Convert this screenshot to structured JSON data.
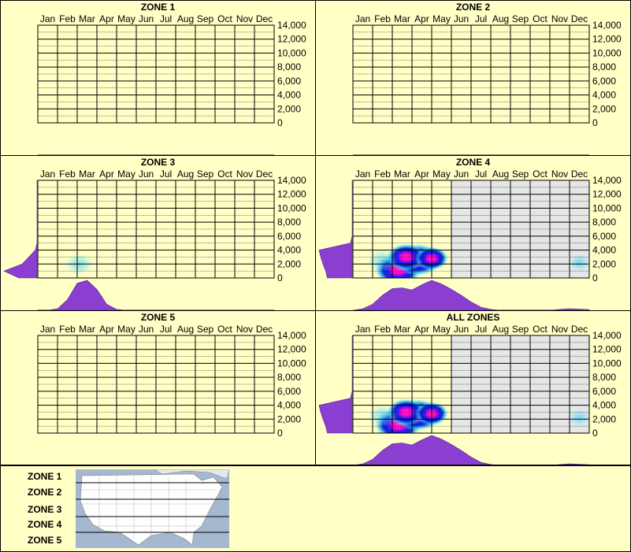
{
  "colors": {
    "background": "#ffffc6",
    "grid": "#000000",
    "shade": "#e6e6e6",
    "density": "#8a3fd0"
  },
  "months": [
    "Jan",
    "Feb",
    "Mar",
    "Apr",
    "May",
    "Jun",
    "Jul",
    "Aug",
    "Sep",
    "Oct",
    "Nov",
    "Dec"
  ],
  "y_ticks": [
    "14,000",
    "12,000",
    "10,000",
    "8,000",
    "6,000",
    "4,000",
    "2,000",
    "0"
  ],
  "panels": [
    {
      "title": "ZONE 1"
    },
    {
      "title": "ZONE 2"
    },
    {
      "title": "ZONE 3"
    },
    {
      "title": "ZONE 4"
    },
    {
      "title": "ZONE 5"
    },
    {
      "title": "ALL ZONES"
    }
  ],
  "zone_labels": [
    "ZONE 1",
    "ZONE 2",
    "ZONE 3",
    "ZONE 4",
    "ZONE 5"
  ],
  "chart_data": [
    {
      "type": "heatmap",
      "title": "ZONE 1",
      "x_categories": [
        "Jan",
        "Feb",
        "Mar",
        "Apr",
        "May",
        "Jun",
        "Jul",
        "Aug",
        "Sep",
        "Oct",
        "Nov",
        "Dec"
      ],
      "ylim": [
        0,
        14000
      ],
      "shaded_months": [],
      "hotspots": [],
      "month_density": [],
      "elev_density": []
    },
    {
      "type": "heatmap",
      "title": "ZONE 2",
      "x_categories": [
        "Jan",
        "Feb",
        "Mar",
        "Apr",
        "May",
        "Jun",
        "Jul",
        "Aug",
        "Sep",
        "Oct",
        "Nov",
        "Dec"
      ],
      "ylim": [
        0,
        14000
      ],
      "shaded_months": [],
      "hotspots": [],
      "month_density": [],
      "elev_density": []
    },
    {
      "type": "heatmap",
      "title": "ZONE 3",
      "x_categories": [
        "Jan",
        "Feb",
        "Mar",
        "Apr",
        "May",
        "Jun",
        "Jul",
        "Aug",
        "Sep",
        "Oct",
        "Nov",
        "Dec"
      ],
      "ylim": [
        0,
        14000
      ],
      "shaded_months": [],
      "hotspots": [
        {
          "month": 1.6,
          "elev": 2000,
          "intensity": 0.35
        }
      ],
      "month_density": [
        0,
        0,
        0.05,
        0.35,
        0.9,
        1.0,
        0.7,
        0.2,
        0.03,
        0,
        0,
        0,
        0,
        0,
        0,
        0,
        0,
        0,
        0,
        0,
        0,
        0,
        0,
        0,
        0
      ],
      "elev_density": [
        0.55,
        1.0,
        0.45,
        0.25,
        0.05,
        0,
        0,
        0,
        0,
        0,
        0,
        0,
        0,
        0,
        0
      ]
    },
    {
      "type": "heatmap",
      "title": "ZONE 4",
      "x_categories": [
        "Jan",
        "Feb",
        "Mar",
        "Apr",
        "May",
        "Jun",
        "Jul",
        "Aug",
        "Sep",
        "Oct",
        "Nov",
        "Dec"
      ],
      "ylim": [
        0,
        14000
      ],
      "shaded_months": [
        "Jun",
        "Jul",
        "Aug",
        "Sep",
        "Oct",
        "Nov",
        "Dec"
      ],
      "hotspots": [
        {
          "month": 1.8,
          "elev": 1200,
          "intensity": 1.0
        },
        {
          "month": 2.8,
          "elev": 2600,
          "intensity": 1.0
        },
        {
          "month": 2.2,
          "elev": 3000,
          "intensity": 0.7
        },
        {
          "month": 3.5,
          "elev": 2800,
          "intensity": 0.5
        },
        {
          "month": 1.0,
          "elev": 2500,
          "intensity": 0.4
        },
        {
          "month": 11.0,
          "elev": 2200,
          "intensity": 0.15
        }
      ],
      "month_density": [
        0,
        0.05,
        0.2,
        0.5,
        0.72,
        0.75,
        0.68,
        0.85,
        1.0,
        0.88,
        0.7,
        0.5,
        0.28,
        0.1,
        0.03,
        0,
        0,
        0,
        0,
        0,
        0,
        0.03,
        0.05,
        0.04,
        0.02
      ],
      "elev_density": [
        0.75,
        0.8,
        0.88,
        0.95,
        1.0,
        0.05,
        0,
        0,
        0,
        0,
        0,
        0,
        0,
        0,
        0
      ]
    },
    {
      "type": "heatmap",
      "title": "ZONE 5",
      "x_categories": [
        "Jan",
        "Feb",
        "Mar",
        "Apr",
        "May",
        "Jun",
        "Jul",
        "Aug",
        "Sep",
        "Oct",
        "Nov",
        "Dec"
      ],
      "ylim": [
        0,
        14000
      ],
      "shaded_months": [],
      "hotspots": [],
      "month_density": [],
      "elev_density": []
    },
    {
      "type": "heatmap",
      "title": "ALL ZONES",
      "x_categories": [
        "Jan",
        "Feb",
        "Mar",
        "Apr",
        "May",
        "Jun",
        "Jul",
        "Aug",
        "Sep",
        "Oct",
        "Nov",
        "Dec"
      ],
      "ylim": [
        0,
        14000
      ],
      "shaded_months": [
        "Jun",
        "Jul",
        "Aug",
        "Sep",
        "Oct",
        "Nov",
        "Dec"
      ],
      "hotspots": [
        {
          "month": 1.8,
          "elev": 1200,
          "intensity": 1.0
        },
        {
          "month": 2.8,
          "elev": 2600,
          "intensity": 1.0
        },
        {
          "month": 2.2,
          "elev": 3000,
          "intensity": 0.7
        },
        {
          "month": 3.5,
          "elev": 2800,
          "intensity": 0.5
        },
        {
          "month": 1.0,
          "elev": 2500,
          "intensity": 0.4
        },
        {
          "month": 11.0,
          "elev": 2200,
          "intensity": 0.15
        }
      ],
      "month_density": [
        0,
        0.05,
        0.2,
        0.5,
        0.72,
        0.75,
        0.68,
        0.85,
        1.0,
        0.88,
        0.7,
        0.5,
        0.28,
        0.1,
        0.03,
        0,
        0,
        0,
        0,
        0,
        0,
        0.03,
        0.05,
        0.04,
        0.02
      ],
      "elev_density": [
        0.75,
        0.8,
        0.88,
        0.95,
        1.0,
        0.05,
        0,
        0,
        0,
        0,
        0,
        0,
        0,
        0,
        0
      ]
    }
  ]
}
